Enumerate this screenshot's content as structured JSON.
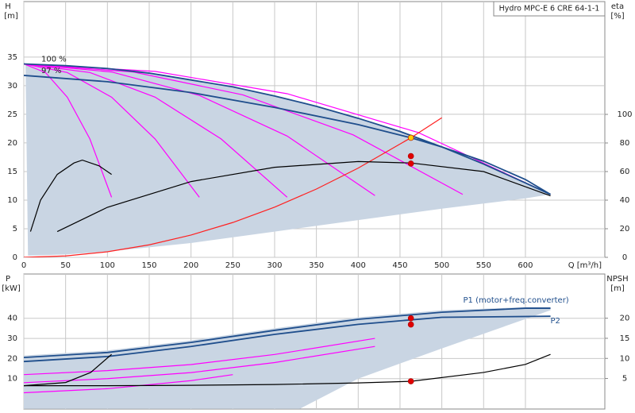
{
  "chart_data": [
    {
      "type": "line",
      "title": "Hydro MPC-E 6 CRE 64-1-1",
      "ylabel": "H",
      "yunit": "[m]",
      "y2label": "eta",
      "y2unit": "[%]",
      "xlabel": "Q [m³/h]",
      "series_labels": "start",
      "show_xtick_labels": true,
      "grid": true,
      "xlim": [
        0,
        695
      ],
      "xticks": [
        0,
        50,
        100,
        150,
        200,
        250,
        300,
        350,
        400,
        450,
        500,
        550,
        600
      ],
      "ylim": [
        0,
        44.7
      ],
      "yticks": [
        0,
        5,
        10,
        15,
        20,
        25,
        30,
        35
      ],
      "y2lim": [
        0,
        178.9
      ],
      "y2ticks": [
        0,
        20,
        40,
        60,
        80,
        100
      ],
      "series": [
        {
          "kind": "area",
          "color": "#c9d5e3",
          "x": [
            2,
            50,
            100,
            150,
            200,
            250,
            300,
            350,
            400,
            450,
            500,
            550,
            600,
            630,
            600,
            500,
            400,
            300,
            200,
            100,
            50,
            5
          ],
          "values": [
            33.8,
            33.5,
            33,
            32.2,
            31,
            29.8,
            28.2,
            26.4,
            24.3,
            22,
            19.3,
            16.3,
            13,
            11,
            10.3,
            8.5,
            6.5,
            4.5,
            2.5,
            1,
            0.5,
            0.3
          ]
        },
        {
          "kind": "line",
          "color": "#ff00ff",
          "x": [
            0,
            26,
            52,
            79,
            105
          ],
          "values": [
            33.8,
            32.3,
            28,
            20.7,
            10.5
          ]
        },
        {
          "kind": "line",
          "color": "#ff00ff",
          "x": [
            0,
            52,
            105,
            157,
            210
          ],
          "values": [
            33.8,
            32.3,
            28,
            20.7,
            10.5
          ]
        },
        {
          "kind": "line",
          "color": "#ff00ff",
          "x": [
            0,
            79,
            157,
            236,
            315
          ],
          "values": [
            33.8,
            32.3,
            28,
            20.7,
            10.5
          ]
        },
        {
          "kind": "line",
          "color": "#ff00ff",
          "x": [
            0,
            105,
            210,
            315,
            420
          ],
          "values": [
            33.8,
            32.4,
            28.3,
            21.2,
            10.8
          ]
        },
        {
          "kind": "line",
          "color": "#ff00ff",
          "x": [
            0,
            131,
            262,
            394,
            525
          ],
          "values": [
            33.8,
            32.4,
            28.4,
            21.4,
            11
          ]
        },
        {
          "kind": "line",
          "color": "#ff00ff",
          "x": [
            0,
            157,
            315,
            472,
            630
          ],
          "values": [
            33.8,
            32.5,
            28.6,
            21.8,
            11
          ]
        },
        {
          "kind": "line",
          "name": "100 %",
          "color": "#1f4e8c",
          "x": [
            0,
            50,
            100,
            150,
            200,
            250,
            300,
            350,
            400,
            450,
            500,
            550,
            600,
            630
          ],
          "values": [
            33.8,
            33.5,
            33,
            32.2,
            31,
            29.8,
            28.2,
            26.4,
            24.3,
            22,
            19.3,
            16.3,
            13,
            11
          ]
        },
        {
          "kind": "line",
          "name": "97 %",
          "color": "#1f4e8c",
          "x": [
            0,
            100,
            200,
            300,
            400,
            463,
            500,
            550,
            600,
            630
          ],
          "values": [
            31.8,
            30.7,
            28.8,
            26.2,
            23.2,
            20.9,
            19.3,
            16.8,
            13.6,
            11
          ]
        },
        {
          "kind": "line",
          "color": "#ff2020",
          "x": [
            0,
            50,
            100,
            150,
            200,
            250,
            300,
            350,
            400,
            463,
            500
          ],
          "values": [
            0,
            0.24,
            0.97,
            2.19,
            3.9,
            6.09,
            8.77,
            11.94,
            15.6,
            20.9,
            24.4
          ]
        },
        {
          "kind": "line",
          "axis": "y2",
          "color": "#000000",
          "x": [
            8,
            20,
            40,
            60,
            70,
            90,
            105
          ],
          "values": [
            18,
            40,
            58,
            66,
            68,
            64,
            58
          ]
        },
        {
          "kind": "line",
          "axis": "y2",
          "color": "#000000",
          "x": [
            40,
            100,
            200,
            300,
            400,
            463,
            550,
            630
          ],
          "values": [
            18,
            35,
            53,
            63,
            67,
            66,
            60,
            43
          ]
        },
        {
          "kind": "points",
          "color": "#ffcc00",
          "x": [
            463
          ],
          "values": [
            20.9
          ]
        },
        {
          "kind": "points",
          "axis": "y2",
          "color": "#e00000",
          "x": [
            463,
            463
          ],
          "values": [
            70.8,
            65.6
          ]
        }
      ]
    },
    {
      "type": "line",
      "ylabel": "P",
      "yunit": "[kW]",
      "y2label": "NPSH",
      "y2unit": "[m]",
      "series_labels": "end",
      "show_xtick_labels": false,
      "grid": true,
      "xlim": [
        0,
        695
      ],
      "xticks": [
        0,
        50,
        100,
        150,
        200,
        250,
        300,
        350,
        400,
        450,
        500,
        550,
        600
      ],
      "ylim": [
        -5.1,
        62
      ],
      "yticks": [
        10,
        20,
        30,
        40
      ],
      "y2lim": [
        -2.6,
        31
      ],
      "y2ticks": [
        5,
        10,
        15,
        20
      ],
      "series": [
        {
          "kind": "area",
          "color": "#c9d5e3",
          "x": [
            0,
            100,
            200,
            300,
            400,
            500,
            600,
            630,
            630,
            500,
            400,
            330,
            0
          ],
          "values": [
            21.5,
            24,
            29,
            35,
            40.5,
            44,
            45.5,
            45.5,
            44,
            25,
            10,
            -5,
            -5
          ]
        },
        {
          "kind": "line",
          "color": "#ff00ff",
          "x": [
            0,
            100,
            200,
            300,
            420
          ],
          "values": [
            12,
            14,
            17,
            22,
            30
          ]
        },
        {
          "kind": "line",
          "color": "#ff00ff",
          "x": [
            0,
            100,
            200,
            300,
            420
          ],
          "values": [
            8,
            10,
            13,
            18,
            26
          ]
        },
        {
          "kind": "line",
          "color": "#ff00ff",
          "x": [
            0,
            100,
            200,
            250
          ],
          "values": [
            3,
            5,
            9,
            12
          ]
        },
        {
          "kind": "line",
          "name": "P1 (motor+freq.converter)",
          "color": "#1f4e8c",
          "x": [
            0,
            100,
            200,
            300,
            400,
            500,
            600,
            630
          ],
          "values": [
            20.5,
            23,
            28,
            34,
            39.5,
            43,
            45,
            45
          ]
        },
        {
          "kind": "line",
          "name": "P2",
          "color": "#1f4e8c",
          "x": [
            0,
            100,
            200,
            300,
            400,
            500,
            630
          ],
          "values": [
            18.5,
            21,
            26,
            32,
            37,
            40.5,
            41
          ]
        },
        {
          "kind": "line",
          "axis": "y2",
          "color": "#000000",
          "x": [
            0,
            50,
            80,
            105
          ],
          "values": [
            3.2,
            4,
            6.5,
            11
          ]
        },
        {
          "kind": "line",
          "axis": "y2",
          "color": "#000000",
          "x": [
            0,
            100,
            200,
            300,
            400,
            463,
            550,
            600,
            630
          ],
          "values": [
            3.2,
            3.2,
            3.3,
            3.5,
            3.9,
            4.3,
            6.5,
            8.5,
            11
          ]
        },
        {
          "kind": "points",
          "color": "#e00000",
          "x": [
            463,
            463
          ],
          "values": [
            40,
            36.9
          ]
        },
        {
          "kind": "points",
          "axis": "y2",
          "color": "#e00000",
          "x": [
            463
          ],
          "values": [
            4.3
          ]
        }
      ]
    }
  ]
}
